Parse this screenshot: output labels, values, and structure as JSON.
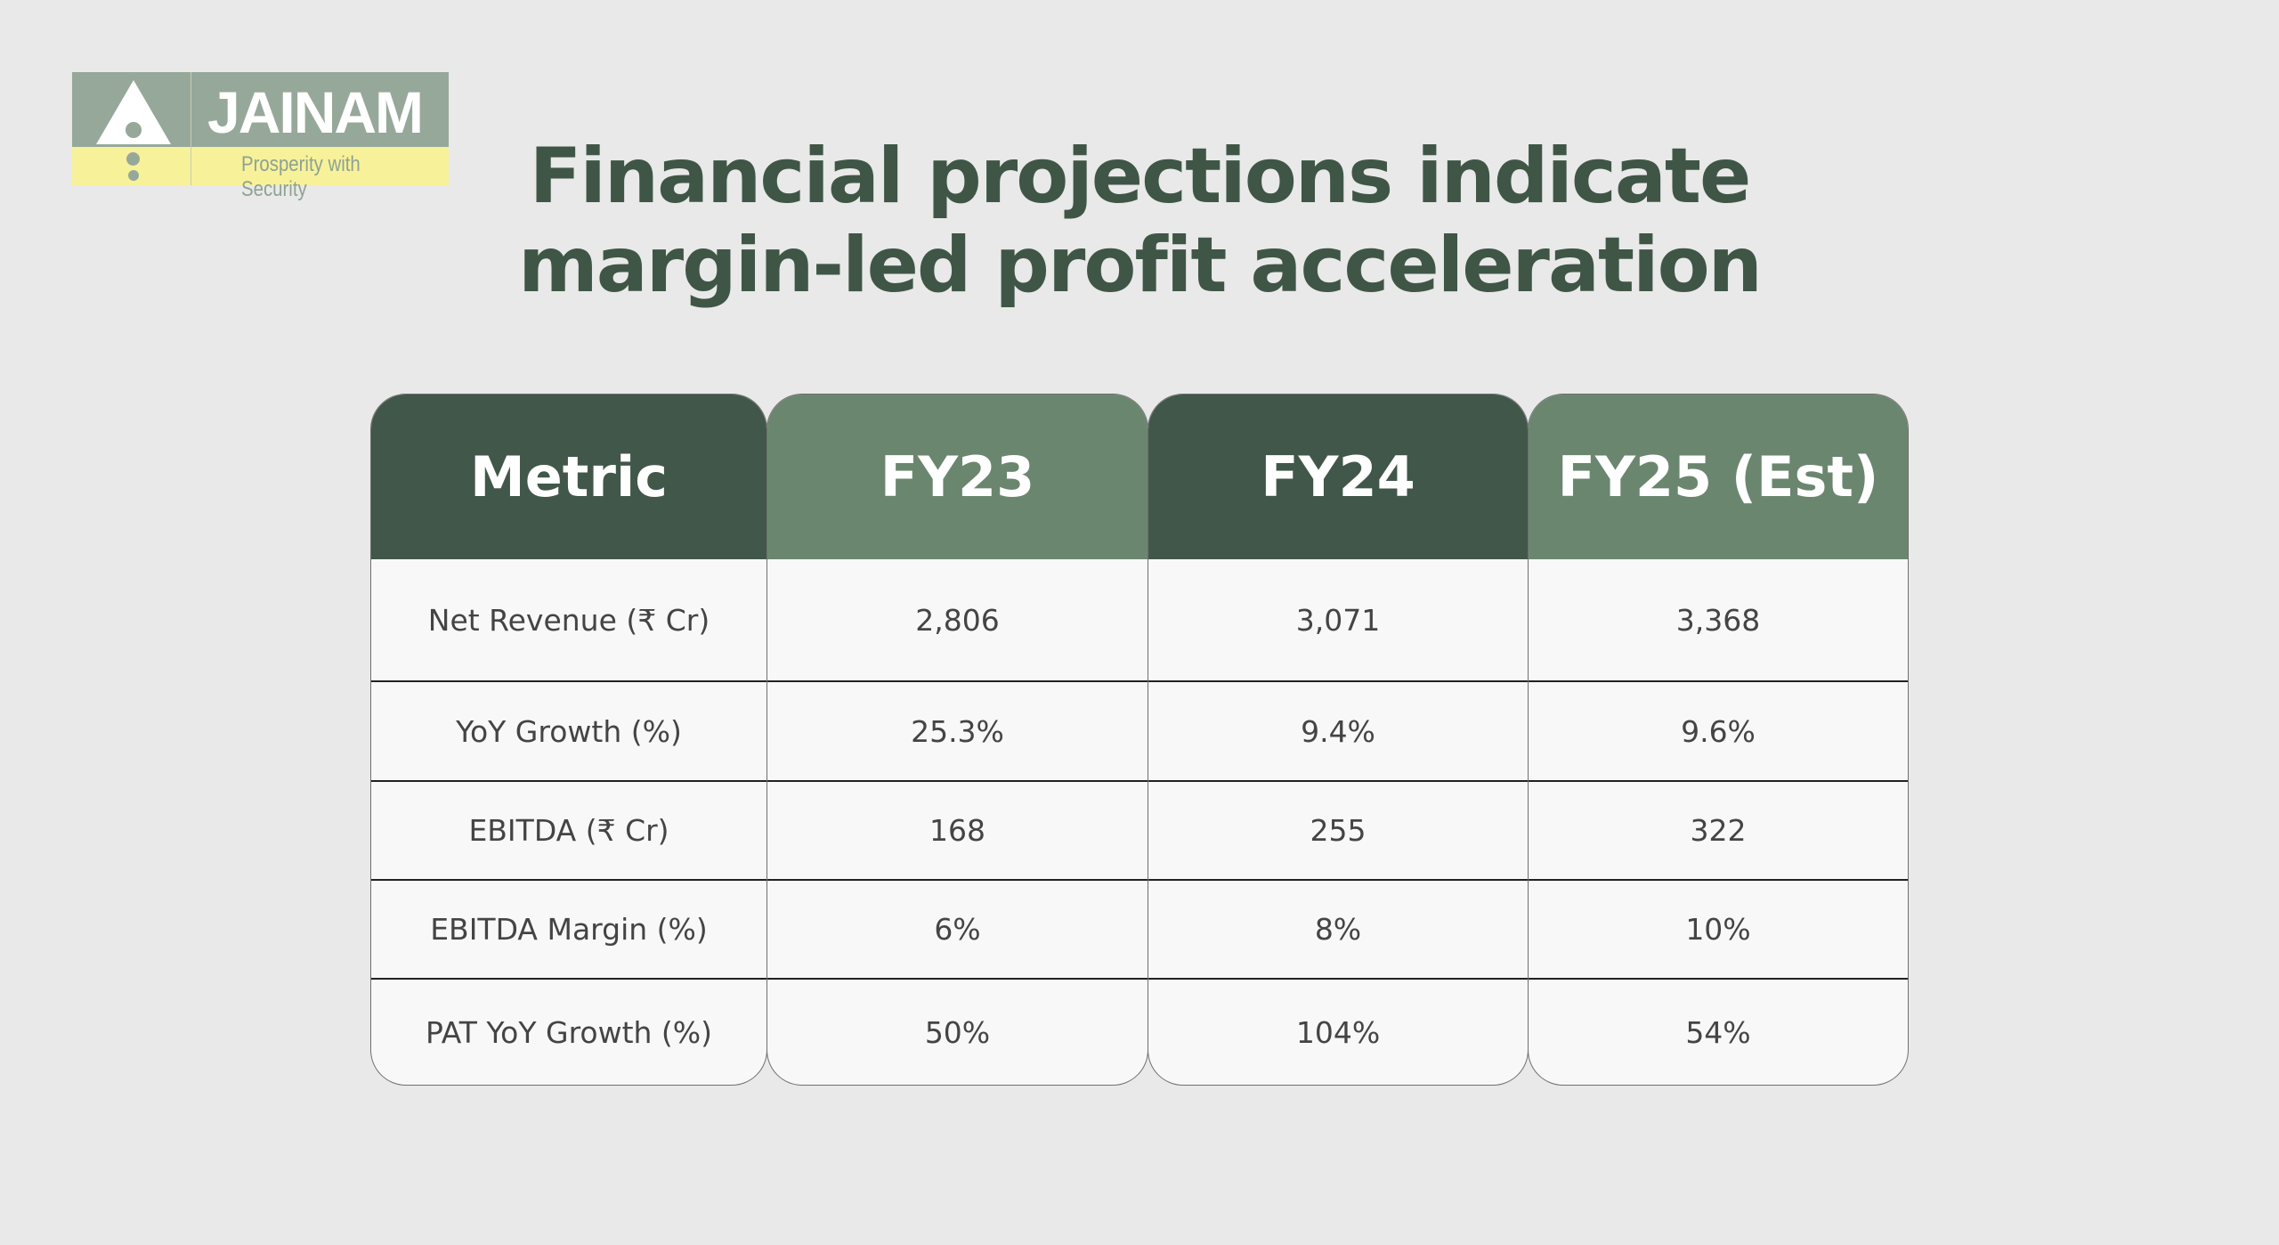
{
  "logo": {
    "name": "JAINAM",
    "tagline": "Prosperity with Security",
    "colors": {
      "top": "#96a89a",
      "bottom": "#f7f19a"
    }
  },
  "title": {
    "line1": "Financial projections indicate",
    "line2": "margin-led profit acceleration"
  },
  "table": {
    "headers": [
      "Metric",
      "FY23",
      "FY24",
      "FY25 (Est)"
    ],
    "rows": [
      [
        "Net Revenue (₹ Cr)",
        "2,806",
        "3,071",
        "3,368"
      ],
      [
        "YoY Growth (%)",
        "25.3%",
        "9.4%",
        "9.6%"
      ],
      [
        "EBITDA (₹ Cr)",
        "168",
        "255",
        "322"
      ],
      [
        "EBITDA Margin (%)",
        "6%",
        "8%",
        "10%"
      ],
      [
        "PAT YoY Growth (%)",
        "50%",
        "104%",
        "54%"
      ]
    ]
  },
  "colors": {
    "header_dark": "#41574a",
    "header_light": "#6b866f",
    "title": "#3f5647"
  }
}
